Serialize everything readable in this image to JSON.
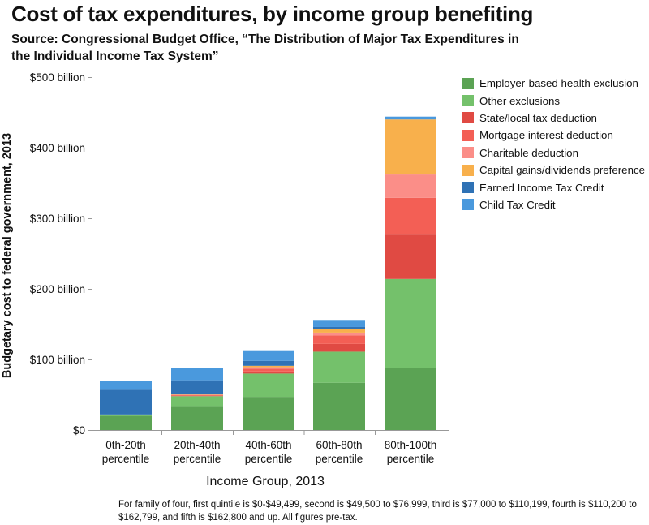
{
  "chart_data": {
    "type": "bar",
    "stacked": true,
    "title": "Cost of tax expenditures, by income group benefiting",
    "subtitle": "Source: Congressional Budget Office, “The Distribution of Major Tax Expenditures in the Individual Income Tax System”",
    "xlabel": "Income Group, 2013",
    "ylabel": "Budgetary cost to federal government, 2013",
    "ylim": [
      0,
      500
    ],
    "yticks": [
      0,
      100,
      200,
      300,
      400,
      500
    ],
    "ytick_labels": [
      "$0",
      "$100 billion",
      "$200 billion",
      "$300 billion",
      "$400 billion",
      "$500 billion"
    ],
    "grid": false,
    "legend_position": "right",
    "categories": [
      "0th-20th percentile",
      "20th-40th percentile",
      "40th-60th percentile",
      "60th-80th percentile",
      "80th-100th percentile"
    ],
    "category_lines": [
      [
        "0th-20th",
        "percentile"
      ],
      [
        "20th-40th",
        "percentile"
      ],
      [
        "40th-60th",
        "percentile"
      ],
      [
        "60th-80th",
        "percentile"
      ],
      [
        "80th-100th",
        "percentile"
      ]
    ],
    "series": [
      {
        "name": "Employer-based health exclusion",
        "color": "#5ba354",
        "values": [
          20,
          34,
          47,
          67,
          88
        ]
      },
      {
        "name": "Other exclusions",
        "color": "#74c16b",
        "values": [
          2,
          14,
          33,
          44,
          126
        ]
      },
      {
        "name": "State/local tax deduction",
        "color": "#e04a43",
        "values": [
          0,
          0.5,
          3,
          11,
          64
        ]
      },
      {
        "name": "Mortgage interest deduction",
        "color": "#f35f55",
        "values": [
          0,
          1,
          4,
          12,
          51
        ]
      },
      {
        "name": "Charitable deduction",
        "color": "#fb8e88",
        "values": [
          0,
          0.5,
          2,
          4,
          33
        ]
      },
      {
        "name": "Capital gains/dividends preference",
        "color": "#f8b04c",
        "values": [
          0,
          0.5,
          2,
          5,
          78
        ]
      },
      {
        "name": "Earned Income Tax Credit",
        "color": "#2f72b5",
        "values": [
          35,
          20,
          7,
          3,
          0
        ]
      },
      {
        "name": "Child Tax Credit",
        "color": "#4a99dd",
        "values": [
          13,
          17,
          15,
          10,
          4
        ]
      }
    ]
  },
  "footnote": "For family of four, first quintile is $0-$49,499, second is $49,500 to $76,999, third is $77,000 to $110,199, fourth is $110,200 to $162,799, and fifth is $162,800 and up. All figures pre-tax."
}
